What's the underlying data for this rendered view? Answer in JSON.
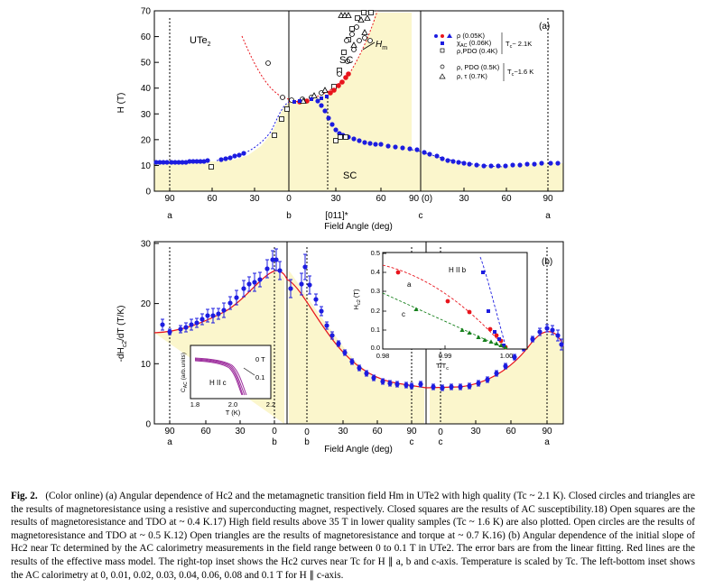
{
  "colors": {
    "fill": "#fbf6cc",
    "blue": "#1c1ce0",
    "red": "#e8141c",
    "green": "#16801c",
    "purple": "#9c2c9c"
  },
  "top": {
    "panel_label": "(a)",
    "y_ticks": [
      "0",
      "10",
      "20",
      "30",
      "40",
      "50",
      "60",
      "70"
    ],
    "y_label": "H (T)",
    "x_ticks_a": [
      "90",
      "60",
      "30",
      "0"
    ],
    "x_ticks_b": [
      "30",
      "60",
      "90 (0)"
    ],
    "x_ticks_c": [
      "30",
      "60",
      "90"
    ],
    "x_dir_labels": [
      "a",
      "b",
      "c",
      "a"
    ],
    "x_special": "[011]*",
    "x_label": "Field Angle (deg)",
    "text_ute2": "UTe",
    "text_ute2_sub": "2",
    "text_hm": "H",
    "text_hm_sub": "m",
    "text_sc_up": "SC",
    "text_sc_low": "SC",
    "legend": {
      "rows": [
        "ρ (0.05K)",
        "χ",
        "ρ,PDO (0.4K)",
        "ρ, PDO (0.5K)",
        "ρ, τ (0.7K)"
      ],
      "chi_sub": "AC",
      "chi_rest": " (0.06K)",
      "tc1": "T",
      "tc1_sub": "c",
      "tc1_rest": "~ 2.1K",
      "tc2": "T",
      "tc2_sub": "c",
      "tc2_rest": "~1.6 K"
    }
  },
  "bottom": {
    "panel_label": "(b)",
    "y_ticks": [
      "0",
      "10",
      "20",
      "30"
    ],
    "y_label": "-dH",
    "y_label_sub": "c2",
    "y_label_rest": "/dT (T/K)",
    "x_ticks_a": [
      "90",
      "60",
      "30",
      "0"
    ],
    "x_ticks_b": [
      "30",
      "60",
      "90"
    ],
    "x_ticks_c": [
      "30",
      "60",
      "90"
    ],
    "x_dir_labels_a": [
      "a",
      "b"
    ],
    "x_dir_labels_b": [
      "b",
      "c"
    ],
    "x_dir_labels_c": [
      "c",
      "a"
    ],
    "x_zero_b": "0",
    "x_zero_c": "0",
    "x_label": "Field Angle (deg)",
    "inset_left": {
      "y_label": "C",
      "y_label_sub": "AC",
      "y_label_rest": " (arb.units)",
      "x_ticks": [
        "1.8",
        "2.0",
        "2.2"
      ],
      "x_label": "T (K)",
      "lbl_0t": "0 T",
      "lbl_01": "0.1",
      "lbl_hc": "H II c"
    },
    "inset_right": {
      "y_label": "H",
      "y_label_sub": "c2",
      "y_label_rest": " (T)",
      "y_ticks": [
        "0.0",
        "0.1",
        "0.2",
        "0.3",
        "0.4",
        "0.5"
      ],
      "x_ticks": [
        "0.98",
        "0.99",
        "1.00"
      ],
      "x_label": "T/T",
      "x_label_sub": "c",
      "lbl_b": "H II b",
      "lbl_a": "a",
      "lbl_c": "c"
    }
  },
  "caption": {
    "label": "Fig. 2.",
    "text": "(Color online) (a) Angular dependence of Hc2 and the metamagnetic transition field Hm in UTe2 with high quality (Tc ~ 2.1 K). Closed circles and triangles are the results of magnetoresistance using a resistive and superconducting magnet, respectively. Closed squares are the results of AC susceptibility.18) Open squares are the results of magnetoresistance and TDO at ~ 0.4 K.17) High field results above 35 T in lower quality samples (Tc ~ 1.6 K) are also plotted. Open circles are the results of magnetoresistance and TDO at ~ 0.5 K.12) Open triangles are the results of magnetoresistance and torque at ~ 0.7 K.16) (b) Angular dependence of the initial slope of Hc2 near Tc determined by the AC calorimetry measurements in the field range between 0 to 0.1 T in UTe2. The error bars are from the linear fitting. Red lines are the results of the effective mass model. The right-top inset shows the Hc2 curves near Tc for H ∥ a, b and c-axis. Temperature is scaled by Tc. The left-bottom inset shows the AC calorimetry at 0, 0.01, 0.02, 0.03, 0.04, 0.06, 0.08 and 0.1 T for H ∥ c-axis."
  }
}
